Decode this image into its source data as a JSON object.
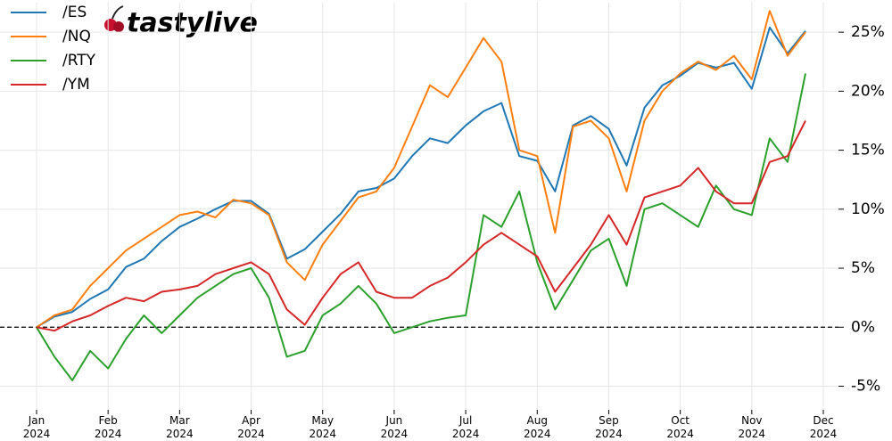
{
  "chart_data": {
    "type": "line",
    "logo": "tastylive",
    "categories": [
      "Jan 2024",
      null,
      null,
      null,
      "Feb 2024",
      null,
      null,
      null,
      "Mar 2024",
      null,
      null,
      null,
      "Apr 2024",
      null,
      null,
      null,
      "May 2024",
      null,
      null,
      null,
      "Jun 2024",
      null,
      null,
      null,
      "Jul 2024",
      null,
      null,
      null,
      "Aug 2024",
      null,
      null,
      null,
      "Sep 2024",
      null,
      null,
      null,
      "Oct 2024",
      null,
      null,
      null,
      "Nov 2024",
      null,
      null,
      null,
      "Dec 2024"
    ],
    "series": [
      {
        "name": "/ES",
        "color": "#1f77b4",
        "values": [
          0,
          0.9,
          1.3,
          2.4,
          3.2,
          5.1,
          5.8,
          7.3,
          8.5,
          9.2,
          10,
          10.7,
          10.7,
          9.6,
          5.8,
          6.6,
          8.1,
          9.6,
          11.5,
          11.8,
          12.6,
          14.5,
          16,
          15.6,
          17.1,
          18.3,
          19,
          14.5,
          14.1,
          11.5,
          17.1,
          17.9,
          16.8,
          13.7,
          18.6,
          20.5,
          21.3,
          22.4,
          22,
          22.4,
          20.2,
          25.4,
          23.2,
          25.1,
          null
        ]
      },
      {
        "name": "/NQ",
        "color": "#ff7f0e",
        "values": [
          0,
          1,
          1.5,
          3.5,
          5,
          6.5,
          7.5,
          8.5,
          9.5,
          9.8,
          9.3,
          10.8,
          10.5,
          9.5,
          5.5,
          4,
          7,
          9,
          11,
          11.5,
          13.5,
          17,
          20.5,
          19.5,
          22,
          24.5,
          22.5,
          15,
          14.5,
          8,
          17,
          17.5,
          16,
          11.5,
          17.5,
          20,
          21.5,
          22.5,
          21.8,
          23,
          21,
          26.8,
          23,
          25,
          null
        ]
      },
      {
        "name": "/RTY",
        "color": "#2ca02c",
        "values": [
          0,
          -2.5,
          -4.5,
          -2,
          -3.5,
          -1,
          1,
          -0.5,
          1,
          2.5,
          3.5,
          4.5,
          5,
          2.5,
          -2.5,
          -2,
          1,
          2,
          3.5,
          2,
          -0.5,
          0,
          0.5,
          0.8,
          1,
          9.5,
          8.5,
          11.5,
          5.5,
          1.5,
          4,
          6.5,
          7.5,
          3.5,
          10,
          10.5,
          9.5,
          8.5,
          12,
          10,
          9.5,
          16,
          14,
          21.5,
          null
        ]
      },
      {
        "name": "/YM",
        "color": "#d62728",
        "values": [
          0,
          -0.3,
          0.5,
          1,
          1.8,
          2.5,
          2.2,
          3,
          3.2,
          3.5,
          4.5,
          5,
          5.5,
          4.5,
          1.5,
          0.2,
          2.5,
          4.5,
          5.5,
          3,
          2.5,
          2.5,
          3.5,
          4.2,
          5.5,
          7,
          8,
          7,
          6,
          3,
          5,
          7,
          9.5,
          7,
          11,
          11.5,
          12,
          13.5,
          11.5,
          10.5,
          10.5,
          14,
          14.5,
          17.5,
          null
        ]
      }
    ],
    "ylim": [
      -7,
      27.5
    ],
    "yticks": [
      {
        "value": -5,
        "label": "-5%"
      },
      {
        "value": 0,
        "label": "0%"
      },
      {
        "value": 5,
        "label": "5%"
      },
      {
        "value": 10,
        "label": "10%"
      },
      {
        "value": 15,
        "label": "15%"
      },
      {
        "value": 20,
        "label": "20%"
      },
      {
        "value": 25,
        "label": "25%"
      }
    ],
    "grid": true,
    "legend": "upper left"
  }
}
